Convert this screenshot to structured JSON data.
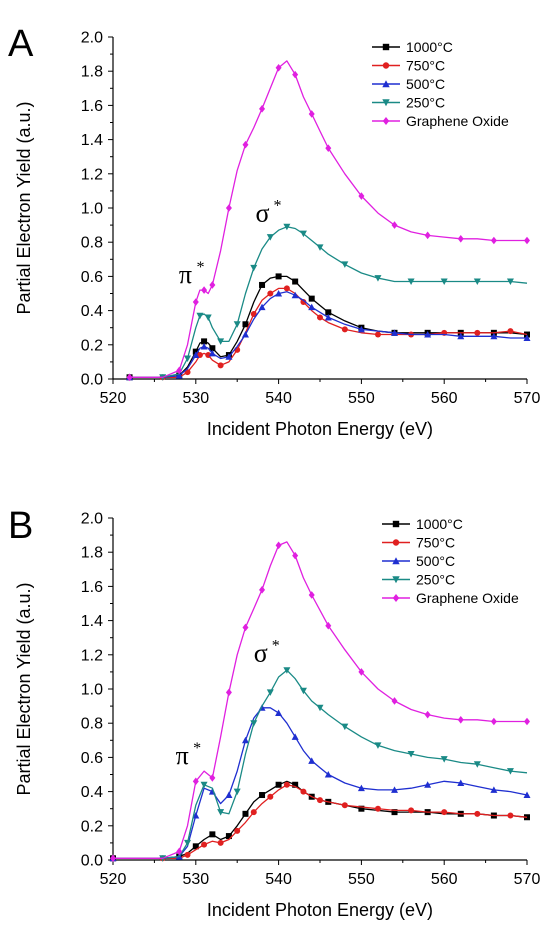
{
  "chart_data": [
    {
      "panel_label": "A",
      "type": "line",
      "xlabel": "Incident Photon Energy (eV)",
      "ylabel": "Partial Electron Yield (a.u.)",
      "xlim": [
        520,
        570
      ],
      "ylim": [
        0.0,
        2.0
      ],
      "xticks": [
        "520",
        "530",
        "540",
        "550",
        "560",
        "570"
      ],
      "yticks": [
        "0.0",
        "0.2",
        "0.4",
        "0.6",
        "0.8",
        "1.0",
        "1.2",
        "1.4",
        "1.6",
        "1.8",
        "2.0"
      ],
      "grid": false,
      "legend_position": "top-right",
      "annotations": [
        {
          "text": "π",
          "sup": "*",
          "x": 530.2,
          "y": 0.56
        },
        {
          "text": "σ",
          "sup": "*",
          "x": 539.5,
          "y": 0.92
        }
      ],
      "series": [
        {
          "name": "1000°C",
          "color": "#000000",
          "marker": "square",
          "x": [
            522,
            526,
            528,
            529,
            530,
            530.5,
            531,
            531.5,
            532,
            533,
            534,
            535,
            536,
            537,
            538,
            539,
            540,
            541,
            542,
            543,
            544,
            545,
            546,
            548,
            550,
            552,
            554,
            556,
            558,
            560,
            562,
            564,
            566,
            568,
            570
          ],
          "y": [
            0.01,
            0.01,
            0.02,
            0.07,
            0.16,
            0.21,
            0.22,
            0.21,
            0.18,
            0.13,
            0.14,
            0.22,
            0.32,
            0.45,
            0.55,
            0.59,
            0.6,
            0.6,
            0.57,
            0.52,
            0.47,
            0.43,
            0.39,
            0.34,
            0.3,
            0.28,
            0.27,
            0.27,
            0.27,
            0.27,
            0.27,
            0.27,
            0.27,
            0.27,
            0.26
          ]
        },
        {
          "name": "750°C",
          "color": "#e02020",
          "marker": "circle",
          "x": [
            522,
            526,
            528,
            529,
            530,
            530.5,
            531,
            531.5,
            532,
            533,
            534,
            535,
            536,
            537,
            538,
            539,
            540,
            541,
            542,
            543,
            544,
            545,
            546,
            548,
            550,
            552,
            554,
            556,
            558,
            560,
            562,
            564,
            566,
            568,
            570
          ],
          "y": [
            0.01,
            0.01,
            0.01,
            0.04,
            0.1,
            0.14,
            0.15,
            0.14,
            0.11,
            0.08,
            0.1,
            0.17,
            0.27,
            0.38,
            0.46,
            0.5,
            0.53,
            0.53,
            0.5,
            0.45,
            0.4,
            0.36,
            0.33,
            0.29,
            0.27,
            0.26,
            0.26,
            0.26,
            0.26,
            0.27,
            0.27,
            0.27,
            0.27,
            0.28,
            0.26
          ]
        },
        {
          "name": "500°C",
          "color": "#1f2fd0",
          "marker": "triangle-up",
          "x": [
            522,
            526,
            528,
            529,
            530,
            530.5,
            531,
            531.5,
            532,
            533,
            534,
            535,
            536,
            537,
            538,
            539,
            540,
            541,
            542,
            543,
            544,
            545,
            546,
            548,
            550,
            552,
            554,
            556,
            558,
            560,
            562,
            564,
            566,
            568,
            570
          ],
          "y": [
            0.01,
            0.01,
            0.02,
            0.06,
            0.14,
            0.18,
            0.19,
            0.18,
            0.15,
            0.12,
            0.13,
            0.19,
            0.26,
            0.35,
            0.42,
            0.47,
            0.5,
            0.51,
            0.49,
            0.46,
            0.42,
            0.39,
            0.36,
            0.32,
            0.29,
            0.28,
            0.27,
            0.26,
            0.26,
            0.26,
            0.25,
            0.25,
            0.25,
            0.24,
            0.24
          ]
        },
        {
          "name": "250°C",
          "color": "#1a8a86",
          "marker": "triangle-down",
          "x": [
            522,
            526,
            528,
            529,
            530,
            530.5,
            531,
            531.5,
            532,
            533,
            534,
            535,
            536,
            537,
            538,
            539,
            540,
            541,
            542,
            543,
            544,
            545,
            546,
            548,
            550,
            552,
            554,
            556,
            558,
            560,
            562,
            564,
            566,
            568,
            570
          ],
          "y": [
            0.01,
            0.01,
            0.03,
            0.12,
            0.3,
            0.37,
            0.38,
            0.36,
            0.3,
            0.22,
            0.22,
            0.32,
            0.5,
            0.65,
            0.76,
            0.83,
            0.87,
            0.89,
            0.88,
            0.85,
            0.81,
            0.77,
            0.73,
            0.67,
            0.62,
            0.59,
            0.57,
            0.57,
            0.57,
            0.57,
            0.57,
            0.57,
            0.57,
            0.57,
            0.56
          ]
        },
        {
          "name": "Graphene Oxide",
          "color": "#e020e0",
          "marker": "diamond",
          "x": [
            522,
            526,
            528,
            529,
            530,
            530.5,
            531,
            531.5,
            532,
            533,
            534,
            535,
            536,
            537,
            538,
            539,
            540,
            541,
            542,
            543,
            544,
            545,
            546,
            548,
            550,
            552,
            554,
            556,
            558,
            560,
            562,
            564,
            566,
            568,
            570
          ],
          "y": [
            0.01,
            0.01,
            0.05,
            0.2,
            0.45,
            0.52,
            0.52,
            0.5,
            0.55,
            0.75,
            1.0,
            1.22,
            1.37,
            1.47,
            1.58,
            1.7,
            1.82,
            1.86,
            1.78,
            1.65,
            1.55,
            1.45,
            1.35,
            1.2,
            1.07,
            0.97,
            0.9,
            0.86,
            0.84,
            0.83,
            0.82,
            0.82,
            0.81,
            0.81,
            0.81
          ]
        }
      ]
    },
    {
      "panel_label": "B",
      "type": "line",
      "xlabel": "Incident Photon Energy (eV)",
      "ylabel": "Partial Electron Yield (a.u.)",
      "xlim": [
        520,
        570
      ],
      "ylim": [
        0.0,
        2.0
      ],
      "xticks": [
        "520",
        "530",
        "540",
        "550",
        "560",
        "570"
      ],
      "yticks": [
        "0.0",
        "0.2",
        "0.4",
        "0.6",
        "0.8",
        "1.0",
        "1.2",
        "1.4",
        "1.6",
        "1.8",
        "2.0"
      ],
      "grid": false,
      "legend_position": "top-right",
      "annotations": [
        {
          "text": "π",
          "sup": "*",
          "x": 529.8,
          "y": 0.56
        },
        {
          "text": "σ",
          "sup": "*",
          "x": 539.3,
          "y": 1.16
        }
      ],
      "series": [
        {
          "name": "1000°C",
          "color": "#000000",
          "marker": "square",
          "x": [
            520,
            526,
            528,
            529,
            530,
            531,
            532,
            533,
            534,
            535,
            536,
            537,
            538,
            539,
            540,
            541,
            542,
            543,
            544,
            545,
            546,
            548,
            550,
            552,
            554,
            556,
            558,
            560,
            562,
            564,
            566,
            568,
            570
          ],
          "y": [
            0.01,
            0.01,
            0.02,
            0.04,
            0.08,
            0.12,
            0.15,
            0.12,
            0.14,
            0.2,
            0.27,
            0.34,
            0.38,
            0.41,
            0.44,
            0.46,
            0.44,
            0.4,
            0.37,
            0.35,
            0.34,
            0.32,
            0.3,
            0.29,
            0.28,
            0.28,
            0.28,
            0.27,
            0.27,
            0.27,
            0.26,
            0.26,
            0.25
          ]
        },
        {
          "name": "750°C",
          "color": "#e02020",
          "marker": "circle",
          "x": [
            520,
            526,
            528,
            529,
            530,
            531,
            532,
            533,
            534,
            535,
            536,
            537,
            538,
            539,
            540,
            541,
            542,
            543,
            544,
            545,
            546,
            548,
            550,
            552,
            554,
            556,
            558,
            560,
            562,
            564,
            566,
            568,
            570
          ],
          "y": [
            0.01,
            0.01,
            0.01,
            0.03,
            0.06,
            0.09,
            0.11,
            0.1,
            0.12,
            0.17,
            0.22,
            0.28,
            0.33,
            0.37,
            0.41,
            0.44,
            0.43,
            0.4,
            0.37,
            0.35,
            0.34,
            0.32,
            0.31,
            0.3,
            0.29,
            0.29,
            0.28,
            0.28,
            0.27,
            0.27,
            0.26,
            0.26,
            0.25
          ]
        },
        {
          "name": "500°C",
          "color": "#1f2fd0",
          "marker": "triangle-up",
          "x": [
            520,
            526,
            528,
            529,
            530,
            531,
            532,
            533,
            534,
            535,
            536,
            537,
            538,
            539,
            540,
            541,
            542,
            543,
            544,
            545,
            546,
            548,
            550,
            552,
            554,
            556,
            558,
            560,
            562,
            564,
            566,
            568,
            570
          ],
          "y": [
            0.01,
            0.01,
            0.02,
            0.08,
            0.26,
            0.42,
            0.4,
            0.33,
            0.38,
            0.52,
            0.7,
            0.83,
            0.89,
            0.89,
            0.86,
            0.8,
            0.72,
            0.64,
            0.58,
            0.54,
            0.5,
            0.45,
            0.42,
            0.41,
            0.41,
            0.42,
            0.44,
            0.46,
            0.45,
            0.43,
            0.41,
            0.4,
            0.38
          ]
        },
        {
          "name": "250°C",
          "color": "#1a8a86",
          "marker": "triangle-down",
          "x": [
            520,
            526,
            528,
            529,
            530,
            531,
            532,
            533,
            534,
            535,
            536,
            537,
            538,
            539,
            540,
            541,
            542,
            543,
            544,
            545,
            546,
            548,
            550,
            552,
            554,
            556,
            558,
            560,
            562,
            564,
            566,
            568,
            570
          ],
          "y": [
            0.01,
            0.01,
            0.02,
            0.1,
            0.32,
            0.44,
            0.42,
            0.28,
            0.27,
            0.4,
            0.62,
            0.8,
            0.9,
            0.98,
            1.07,
            1.11,
            1.06,
            0.99,
            0.93,
            0.89,
            0.85,
            0.78,
            0.72,
            0.67,
            0.64,
            0.62,
            0.6,
            0.59,
            0.57,
            0.56,
            0.54,
            0.52,
            0.51
          ]
        },
        {
          "name": "Graphene Oxide",
          "color": "#e020e0",
          "marker": "diamond",
          "x": [
            520,
            526,
            528,
            529,
            530,
            531,
            532,
            533,
            534,
            535,
            536,
            537,
            538,
            539,
            540,
            541,
            542,
            543,
            544,
            545,
            546,
            548,
            550,
            552,
            554,
            556,
            558,
            560,
            562,
            564,
            566,
            568,
            570
          ],
          "y": [
            0.01,
            0.01,
            0.05,
            0.2,
            0.46,
            0.52,
            0.48,
            0.72,
            0.98,
            1.2,
            1.36,
            1.47,
            1.58,
            1.72,
            1.84,
            1.86,
            1.78,
            1.65,
            1.55,
            1.46,
            1.37,
            1.23,
            1.1,
            1.0,
            0.93,
            0.88,
            0.85,
            0.83,
            0.82,
            0.82,
            0.81,
            0.81,
            0.81
          ]
        }
      ]
    }
  ]
}
